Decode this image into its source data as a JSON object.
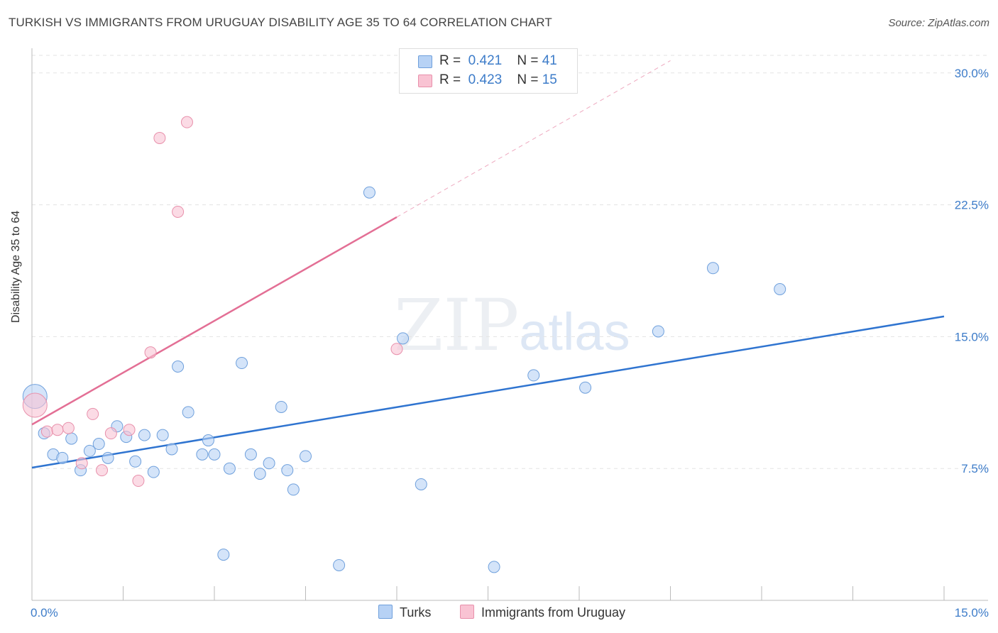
{
  "title": "TURKISH VS IMMIGRANTS FROM URUGUAY DISABILITY AGE 35 TO 64 CORRELATION CHART",
  "source": "Source: ZipAtlas.com",
  "watermark": {
    "zip": "ZIP",
    "atlas": "atlas"
  },
  "legend": {
    "r_label": "R =",
    "n_label": "N =",
    "series": [
      {
        "r": "0.421",
        "n": "41"
      },
      {
        "r": "0.423",
        "n": "15"
      }
    ]
  },
  "bottom_legend": [
    "Turks",
    "Immigrants from Uruguay"
  ],
  "colors": {
    "turks_fill": "#b7d2f5",
    "turks_stroke": "#6fa0dc",
    "turks_line": "#2f74d0",
    "uruguay_fill": "#f9c3d3",
    "uruguay_stroke": "#e890ab",
    "uruguay_line": "#e36f95",
    "grid": "#e3e3e3",
    "tick_text": "#3d7cc9"
  },
  "chart_data": {
    "type": "scatter",
    "title": "TURKISH VS IMMIGRANTS FROM URUGUAY DISABILITY AGE 35 TO 64 CORRELATION CHART",
    "xlabel": "",
    "ylabel": "Disability Age 35 to 64",
    "xlim": [
      0,
      15
    ],
    "ylim": [
      0,
      31
    ],
    "x_tick_labels": [
      "0.0%",
      "15.0%"
    ],
    "y_ticks": [
      7.5,
      15.0,
      22.5,
      30.0
    ],
    "y_tick_labels": [
      "7.5%",
      "15.0%",
      "22.5%",
      "30.0%"
    ],
    "series": [
      {
        "name": "Turks",
        "points": [
          {
            "x": 0.05,
            "y": 11.6,
            "big": true
          },
          {
            "x": 0.2,
            "y": 9.5
          },
          {
            "x": 0.35,
            "y": 8.3
          },
          {
            "x": 0.5,
            "y": 8.1
          },
          {
            "x": 0.65,
            "y": 9.2
          },
          {
            "x": 0.8,
            "y": 7.4
          },
          {
            "x": 0.95,
            "y": 8.5
          },
          {
            "x": 1.1,
            "y": 8.9
          },
          {
            "x": 1.25,
            "y": 8.1
          },
          {
            "x": 1.4,
            "y": 9.9
          },
          {
            "x": 1.55,
            "y": 9.3
          },
          {
            "x": 1.7,
            "y": 7.9
          },
          {
            "x": 1.85,
            "y": 9.4
          },
          {
            "x": 2.0,
            "y": 7.3
          },
          {
            "x": 2.15,
            "y": 9.4
          },
          {
            "x": 2.3,
            "y": 8.6
          },
          {
            "x": 2.4,
            "y": 13.3
          },
          {
            "x": 2.57,
            "y": 10.7
          },
          {
            "x": 2.8,
            "y": 8.3
          },
          {
            "x": 2.9,
            "y": 9.1
          },
          {
            "x": 3.0,
            "y": 8.3
          },
          {
            "x": 3.15,
            "y": 2.6
          },
          {
            "x": 3.25,
            "y": 7.5
          },
          {
            "x": 3.45,
            "y": 13.5
          },
          {
            "x": 3.6,
            "y": 8.3
          },
          {
            "x": 3.75,
            "y": 7.2
          },
          {
            "x": 3.9,
            "y": 7.8
          },
          {
            "x": 4.1,
            "y": 11.0
          },
          {
            "x": 4.2,
            "y": 7.4
          },
          {
            "x": 4.3,
            "y": 6.3
          },
          {
            "x": 4.5,
            "y": 8.2
          },
          {
            "x": 5.05,
            "y": 2.0
          },
          {
            "x": 5.55,
            "y": 23.2
          },
          {
            "x": 6.1,
            "y": 14.9
          },
          {
            "x": 6.4,
            "y": 6.6
          },
          {
            "x": 7.6,
            "y": 1.9
          },
          {
            "x": 8.25,
            "y": 12.8
          },
          {
            "x": 9.1,
            "y": 12.1
          },
          {
            "x": 10.3,
            "y": 15.3
          },
          {
            "x": 11.2,
            "y": 18.9
          },
          {
            "x": 12.3,
            "y": 17.7
          }
        ],
        "trend": {
          "x": [
            0,
            15
          ],
          "y": [
            7.55,
            16.15
          ]
        }
      },
      {
        "name": "Immigrants from Uruguay",
        "points": [
          {
            "x": 0.05,
            "y": 11.1,
            "big": true
          },
          {
            "x": 0.25,
            "y": 9.6
          },
          {
            "x": 0.42,
            "y": 9.7
          },
          {
            "x": 0.6,
            "y": 9.8
          },
          {
            "x": 0.82,
            "y": 7.8
          },
          {
            "x": 1.0,
            "y": 10.6
          },
          {
            "x": 1.15,
            "y": 7.4
          },
          {
            "x": 1.3,
            "y": 9.5
          },
          {
            "x": 1.6,
            "y": 9.7
          },
          {
            "x": 1.75,
            "y": 6.8
          },
          {
            "x": 1.95,
            "y": 14.1
          },
          {
            "x": 2.1,
            "y": 26.3
          },
          {
            "x": 2.4,
            "y": 22.1
          },
          {
            "x": 2.55,
            "y": 27.2
          },
          {
            "x": 6.0,
            "y": 14.3
          }
        ],
        "trend": {
          "x": [
            0,
            6.0
          ],
          "y": [
            10.0,
            21.8
          ]
        },
        "trend_extension": {
          "x": [
            6.0,
            10.5
          ],
          "y": [
            21.8,
            30.7
          ]
        }
      }
    ]
  }
}
